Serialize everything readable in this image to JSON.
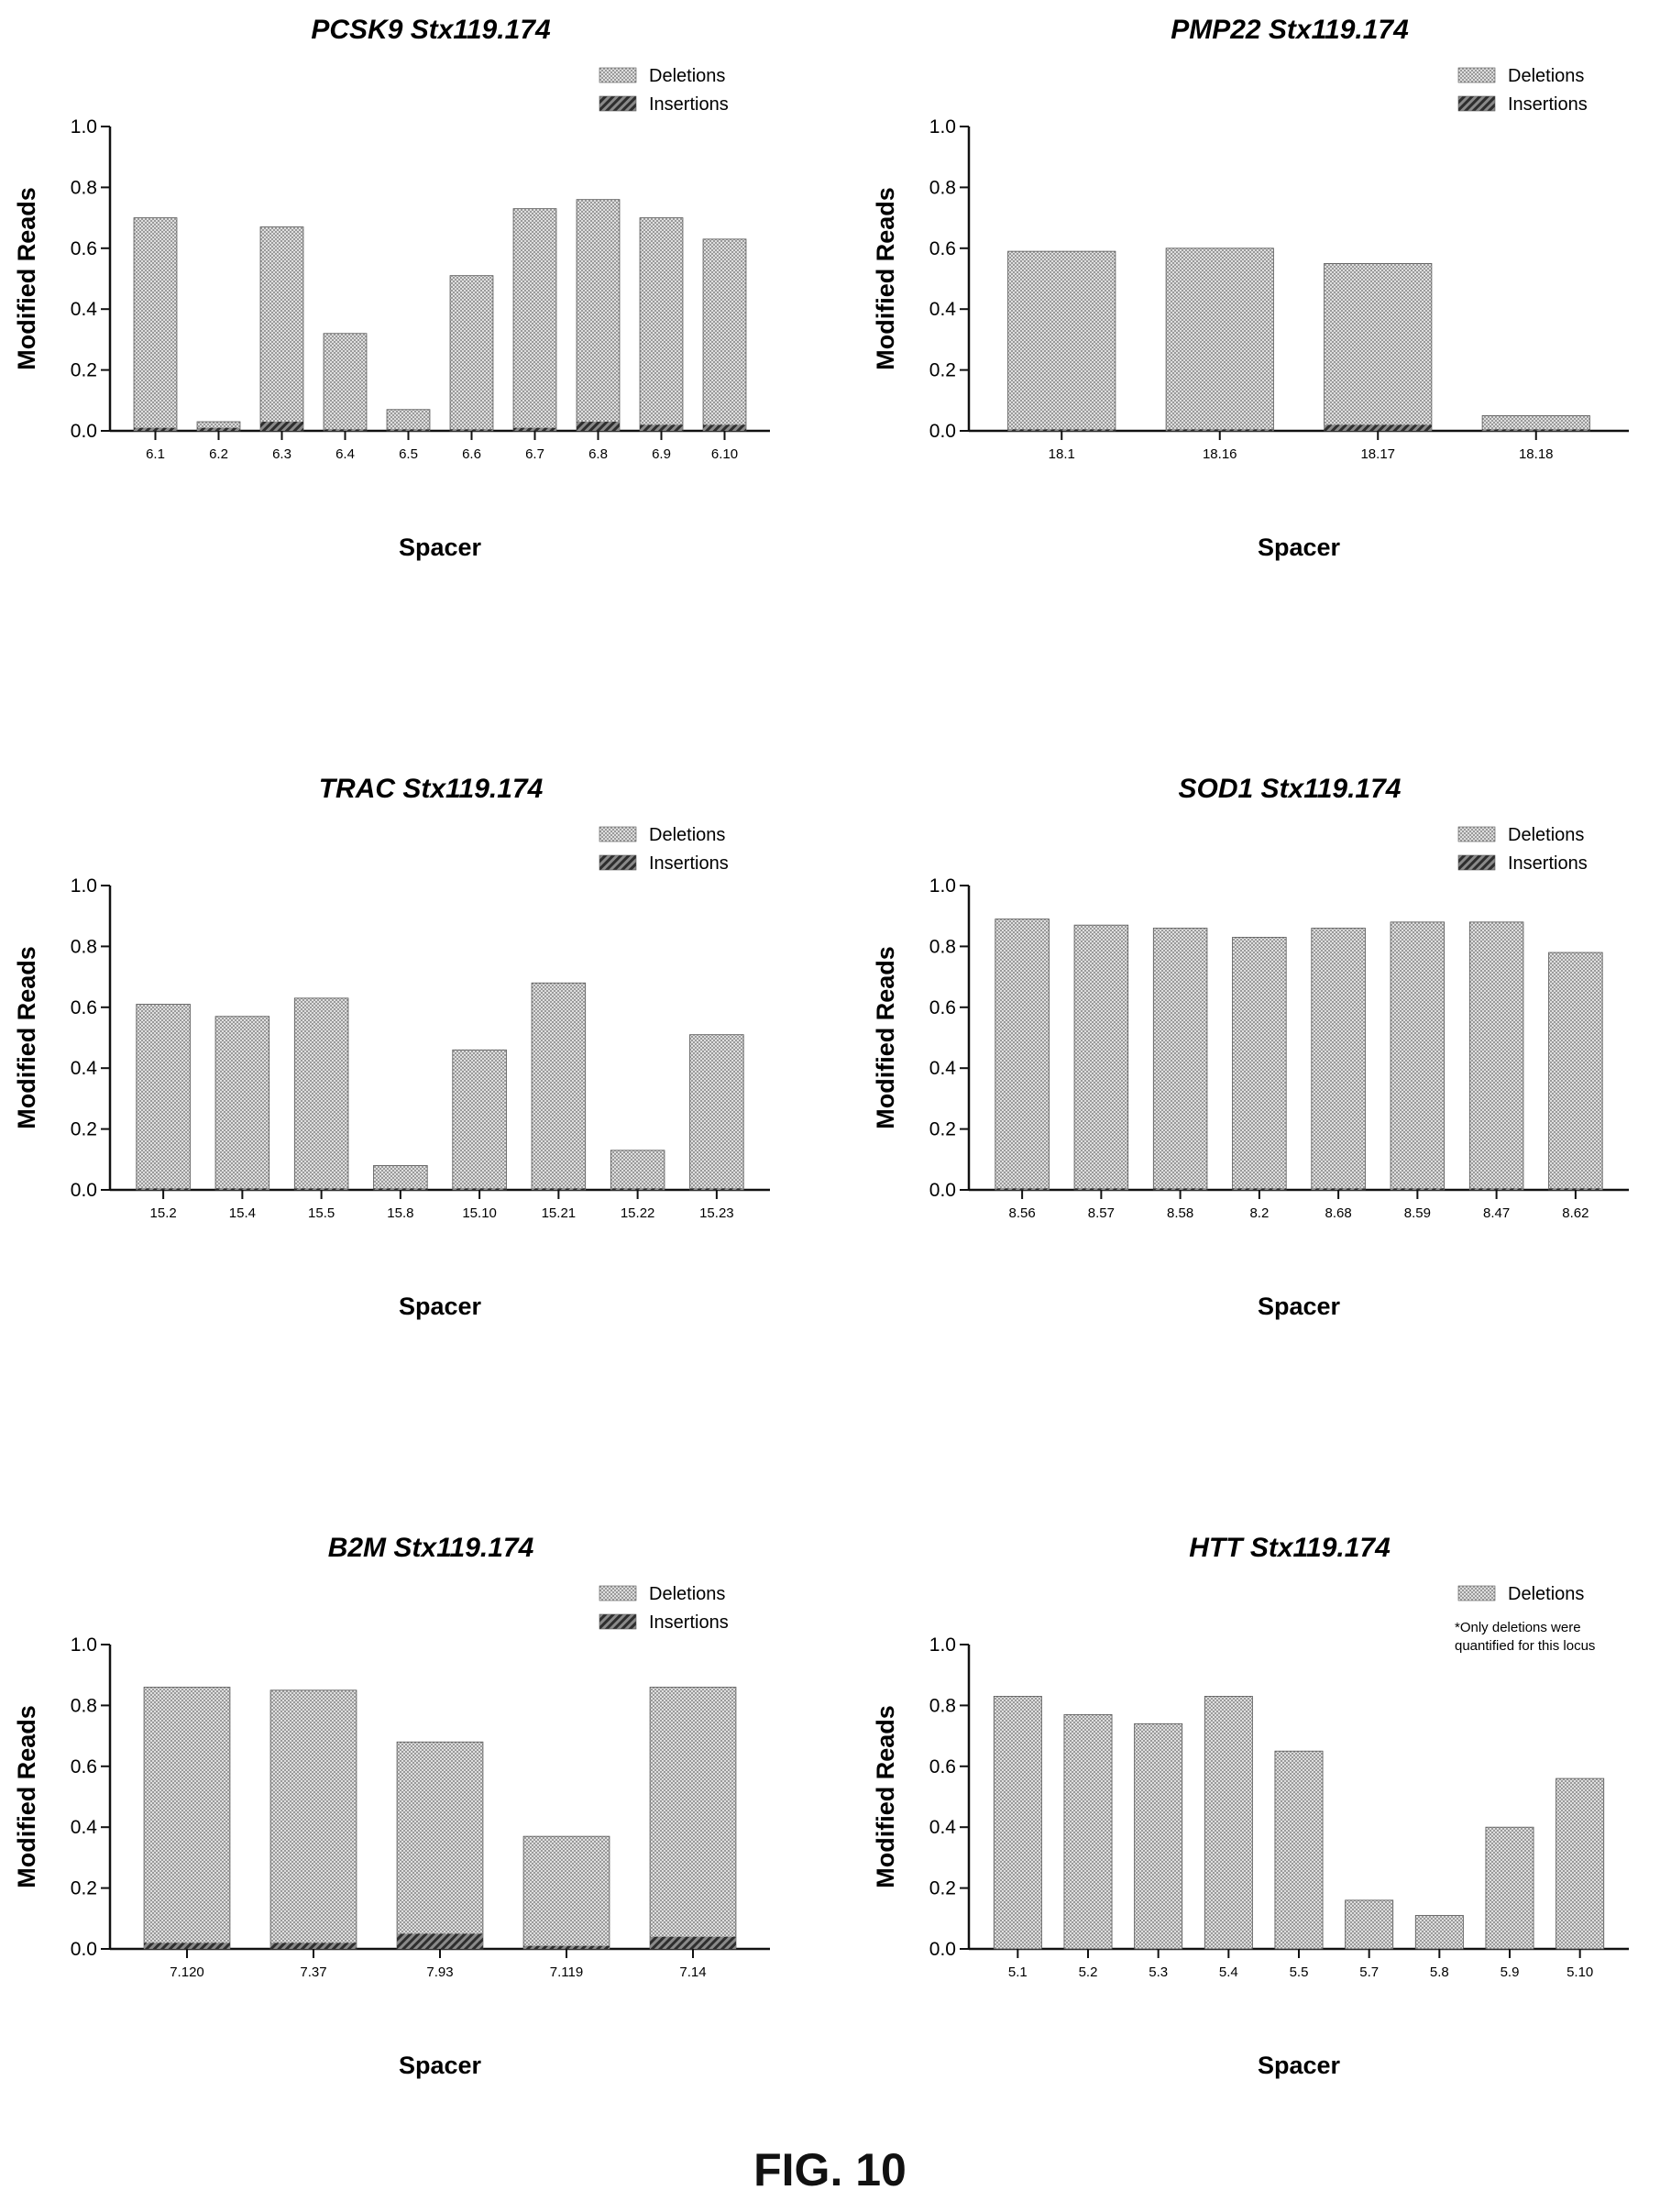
{
  "figure_caption": "FIG. 10",
  "colors": {
    "deletions": "#d3d3d3",
    "insertions": "#5a5a5a",
    "axis": "#111111"
  },
  "chart_data": [
    {
      "type": "bar",
      "title": "PCSK9 Stx119.174",
      "xlabel": "Spacer",
      "ylabel": "Modified Reads",
      "ylim": [
        0,
        1.0
      ],
      "yticks": [
        "0.0",
        "0.2",
        "0.4",
        "0.6",
        "0.8",
        "1.0"
      ],
      "legend": [
        "Deletions",
        "Insertions"
      ],
      "legend_position": "top-right",
      "categories": [
        "6.1",
        "6.2",
        "6.3",
        "6.4",
        "6.5",
        "6.6",
        "6.7",
        "6.8",
        "6.9",
        "6.10"
      ],
      "series": [
        {
          "name": "Deletions",
          "values": [
            0.7,
            0.03,
            0.67,
            0.32,
            0.07,
            0.51,
            0.73,
            0.76,
            0.7,
            0.63
          ]
        },
        {
          "name": "Insertions",
          "values": [
            0.01,
            0.01,
            0.03,
            0.005,
            0.005,
            0.005,
            0.01,
            0.03,
            0.02,
            0.02
          ]
        }
      ]
    },
    {
      "type": "bar",
      "title": "PMP22 Stx119.174",
      "xlabel": "Spacer",
      "ylabel": "Modified Reads",
      "ylim": [
        0,
        1.0
      ],
      "yticks": [
        "0.0",
        "0.2",
        "0.4",
        "0.6",
        "0.8",
        "1.0"
      ],
      "legend": [
        "Deletions",
        "Insertions"
      ],
      "legend_position": "top-right",
      "categories": [
        "18.1",
        "18.16",
        "18.17",
        "18.18"
      ],
      "series": [
        {
          "name": "Deletions",
          "values": [
            0.59,
            0.6,
            0.55,
            0.05
          ]
        },
        {
          "name": "Insertions",
          "values": [
            0.005,
            0.005,
            0.02,
            0.005
          ]
        }
      ]
    },
    {
      "type": "bar",
      "title": "TRAC Stx119.174",
      "xlabel": "Spacer",
      "ylabel": "Modified Reads",
      "ylim": [
        0,
        1.0
      ],
      "yticks": [
        "0.0",
        "0.2",
        "0.4",
        "0.6",
        "0.8",
        "1.0"
      ],
      "legend": [
        "Deletions",
        "Insertions"
      ],
      "legend_position": "top-right",
      "categories": [
        "15.2",
        "15.4",
        "15.5",
        "15.8",
        "15.10",
        "15.21",
        "15.22",
        "15.23"
      ],
      "series": [
        {
          "name": "Deletions",
          "values": [
            0.61,
            0.57,
            0.63,
            0.08,
            0.46,
            0.68,
            0.13,
            0.51
          ]
        },
        {
          "name": "Insertions",
          "values": [
            0.005,
            0.005,
            0.005,
            0.005,
            0.005,
            0.005,
            0.005,
            0.005
          ]
        }
      ]
    },
    {
      "type": "bar",
      "title": "SOD1 Stx119.174",
      "xlabel": "Spacer",
      "ylabel": "Modified Reads",
      "ylim": [
        0,
        1.0
      ],
      "yticks": [
        "0.0",
        "0.2",
        "0.4",
        "0.6",
        "0.8",
        "1.0"
      ],
      "legend": [
        "Deletions",
        "Insertions"
      ],
      "legend_position": "top-right",
      "categories": [
        "8.56",
        "8.57",
        "8.58",
        "8.2",
        "8.68",
        "8.59",
        "8.47",
        "8.62"
      ],
      "series": [
        {
          "name": "Deletions",
          "values": [
            0.89,
            0.87,
            0.86,
            0.83,
            0.86,
            0.88,
            0.88,
            0.78
          ]
        },
        {
          "name": "Insertions",
          "values": [
            0.005,
            0.005,
            0.005,
            0.005,
            0.005,
            0.005,
            0.005,
            0.005
          ]
        }
      ]
    },
    {
      "type": "bar",
      "title": "B2M Stx119.174",
      "xlabel": "Spacer",
      "ylabel": "Modified Reads",
      "ylim": [
        0,
        1.0
      ],
      "yticks": [
        "0.0",
        "0.2",
        "0.4",
        "0.6",
        "0.8",
        "1.0"
      ],
      "legend": [
        "Deletions",
        "Insertions"
      ],
      "legend_position": "top-right",
      "categories": [
        "7.120",
        "7.37",
        "7.93",
        "7.119",
        "7.14"
      ],
      "series": [
        {
          "name": "Deletions",
          "values": [
            0.86,
            0.85,
            0.68,
            0.37,
            0.86
          ]
        },
        {
          "name": "Insertions",
          "values": [
            0.02,
            0.02,
            0.05,
            0.01,
            0.04
          ]
        }
      ]
    },
    {
      "type": "bar",
      "title": "HTT Stx119.174",
      "xlabel": "Spacer",
      "ylabel": "Modified Reads",
      "ylim": [
        0,
        1.0
      ],
      "yticks": [
        "0.0",
        "0.2",
        "0.4",
        "0.6",
        "0.8",
        "1.0"
      ],
      "legend": [
        "Deletions"
      ],
      "legend_position": "top-right",
      "note": [
        "*Only deletions were",
        "quantified for this locus"
      ],
      "categories": [
        "5.1",
        "5.2",
        "5.3",
        "5.4",
        "5.5",
        "5.7",
        "5.8",
        "5.9",
        "5.10"
      ],
      "series": [
        {
          "name": "Deletions",
          "values": [
            0.83,
            0.77,
            0.74,
            0.83,
            0.65,
            0.16,
            0.11,
            0.4,
            0.56
          ]
        }
      ]
    }
  ]
}
